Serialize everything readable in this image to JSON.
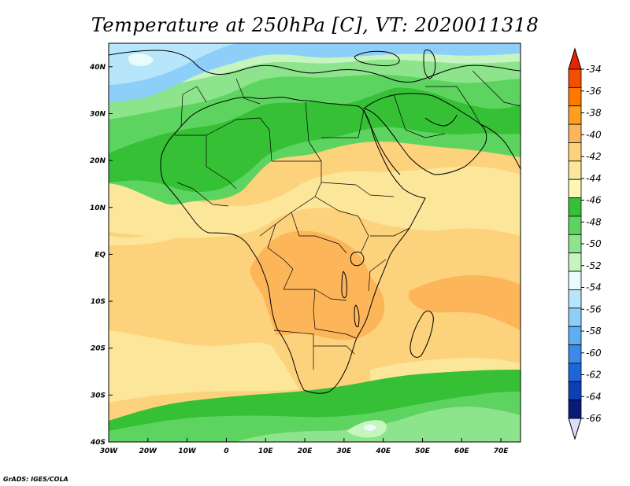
{
  "title": "Temperature at 250hPa [C], VT: 2020011318",
  "credit": "GrADS: IGES/COLA",
  "map": {
    "lon_range": [
      -30,
      75
    ],
    "lat_range": [
      -40,
      45
    ],
    "x_ticks": [
      "30W",
      "20W",
      "10W",
      "0",
      "10E",
      "20E",
      "30E",
      "40E",
      "50E",
      "60E",
      "70E"
    ],
    "x_tick_values": [
      -30,
      -20,
      -10,
      0,
      10,
      20,
      30,
      40,
      50,
      60,
      70
    ],
    "y_ticks": [
      "40N",
      "30N",
      "20N",
      "10N",
      "EQ",
      "10S",
      "20S",
      "30S",
      "40S"
    ],
    "y_tick_values": [
      40,
      30,
      20,
      10,
      0,
      -10,
      -20,
      -30,
      -40
    ]
  },
  "colorbar": {
    "labels": [
      "-34",
      "-36",
      "-38",
      "-40",
      "-42",
      "-44",
      "-46",
      "-48",
      "-50",
      "-52",
      "-54",
      "-56",
      "-58",
      "-60",
      "-62",
      "-64",
      "-66"
    ],
    "colors": [
      "#f05000",
      "#ff7800",
      "#ff9e1f",
      "#fdb55a",
      "#fdd27c",
      "#fbe69a",
      "#fdf6b8",
      "#35c035",
      "#5ed460",
      "#8ee48c",
      "#c6f5c0",
      "#e9fbfb",
      "#b7e6fb",
      "#8ecffa",
      "#5eaef3",
      "#3a8ae6",
      "#1f64d8",
      "#0f3fb3",
      "#0a1a78"
    ],
    "top_arrow_color": "#e62400",
    "bottom_arrow_color": "#e0dcff"
  }
}
